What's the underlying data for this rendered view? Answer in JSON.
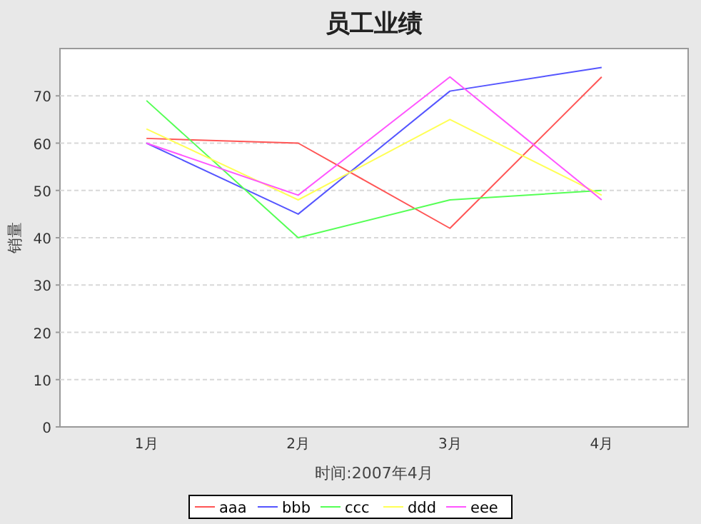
{
  "chart_data": {
    "type": "line",
    "title": "员工业绩",
    "xlabel": "时间:2007年4月",
    "ylabel": "销量",
    "categories": [
      "1月",
      "2月",
      "3月",
      "4月"
    ],
    "series": [
      {
        "name": "aaa",
        "color": "#ff5555",
        "values": [
          61,
          60,
          42,
          74
        ]
      },
      {
        "name": "bbb",
        "color": "#5555ff",
        "values": [
          60,
          45,
          71,
          76
        ]
      },
      {
        "name": "ccc",
        "color": "#55ff55",
        "values": [
          69,
          40,
          48,
          50
        ]
      },
      {
        "name": "ddd",
        "color": "#ffff55",
        "values": [
          63,
          48,
          65,
          49
        ]
      },
      {
        "name": "eee",
        "color": "#ff55ff",
        "values": [
          60,
          49,
          74,
          48
        ]
      }
    ],
    "ylim": [
      0,
      80
    ],
    "yticks": [
      0,
      10,
      20,
      30,
      40,
      50,
      60,
      70
    ],
    "grid": "y",
    "legend": "bottom",
    "marker": "none"
  }
}
